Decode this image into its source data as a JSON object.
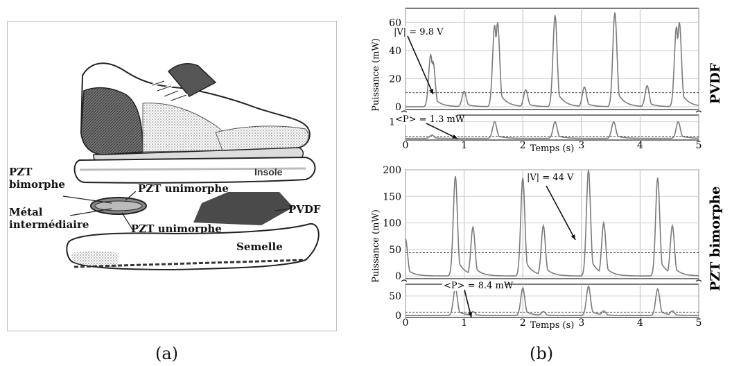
{
  "panel_a": {
    "caption": "(a)",
    "labels": {
      "insole": "Insole",
      "pzt_bimorphe_1": "PZT",
      "pzt_bimorphe_2": "bimorphe",
      "pzt_unimorphe_top": "PZT unimorphe",
      "metal_1": "Métal",
      "metal_2": "intermédiaire",
      "pzt_unimorphe_bottom": "PZT unimorphe",
      "pvdf": "PVDF",
      "semelle": "Semelle"
    },
    "colors": {
      "dark_fill": "#4a4a4a",
      "outline": "#333333"
    }
  },
  "panel_b": {
    "caption": "(b)",
    "top_side_label": "PVDF",
    "bottom_side_label": "PZT bimorphe"
  },
  "chart_data": [
    {
      "type": "line",
      "id": "pvdf",
      "ylabel": "Puissance (mW)",
      "xlabel": "Temps (s)",
      "xlim": [
        0,
        5
      ],
      "xticks": [
        0,
        1,
        2,
        3,
        4,
        5
      ],
      "upper": {
        "ylim": [
          -2,
          70
        ],
        "yticks": [
          0,
          20,
          40,
          60
        ],
        "dashed_level": 10,
        "series": [
          {
            "color": "#7a7a7a",
            "peaks": [
              [
                0.43,
                37
              ],
              [
                0.47,
                32
              ],
              [
                1.0,
                11
              ],
              [
                1.52,
                58
              ],
              [
                1.57,
                60
              ],
              [
                2.05,
                12
              ],
              [
                2.55,
                65
              ],
              [
                3.05,
                14
              ],
              [
                3.57,
                67
              ],
              [
                4.12,
                15
              ],
              [
                4.62,
                57
              ],
              [
                4.67,
                60
              ]
            ]
          }
        ]
      },
      "lower": {
        "ylim": [
          -1,
          14
        ],
        "yticks": [
          10
        ],
        "dashed_level": 1.3,
        "series": [
          {
            "color": "#7a7a7a",
            "peaks": [
              [
                0.45,
                2
              ],
              [
                1.52,
                10
              ],
              [
                2.55,
                10
              ],
              [
                3.55,
                10
              ],
              [
                4.65,
                10
              ]
            ]
          }
        ]
      },
      "annotations": [
        "|V| = 9.8 V",
        "<P> = 1.3 mW"
      ]
    },
    {
      "type": "line",
      "id": "pzt_bimorphe",
      "ylabel": "Puissance (mW)",
      "xlabel": "Temps (s)",
      "xlim": [
        0,
        5
      ],
      "xticks": [
        0,
        1,
        2,
        3,
        4,
        5
      ],
      "upper": {
        "ylim": [
          -5,
          200
        ],
        "yticks": [
          0,
          50,
          100,
          150,
          200
        ],
        "dashed_level": 44,
        "series": [
          {
            "color": "#7a7a7a",
            "peaks": [
              [
                0.0,
                70
              ],
              [
                0.85,
                188
              ],
              [
                1.15,
                92
              ],
              [
                2.0,
                185
              ],
              [
                2.35,
                95
              ],
              [
                3.12,
                200
              ],
              [
                3.38,
                100
              ],
              [
                4.3,
                185
              ],
              [
                4.55,
                95
              ]
            ]
          }
        ]
      },
      "lower": {
        "ylim": [
          -5,
          80
        ],
        "yticks": [
          0,
          50
        ],
        "dashed_level": 8.4,
        "series": [
          {
            "color": "#7a7a7a",
            "peaks": [
              [
                0.85,
                70
              ],
              [
                1.15,
                10
              ],
              [
                2.0,
                70
              ],
              [
                2.35,
                10
              ],
              [
                3.12,
                75
              ],
              [
                3.38,
                12
              ],
              [
                4.3,
                68
              ],
              [
                4.55,
                12
              ]
            ]
          }
        ]
      },
      "annotations": [
        "|V| = 44 V",
        "<P> = 8.4 mW"
      ]
    }
  ]
}
